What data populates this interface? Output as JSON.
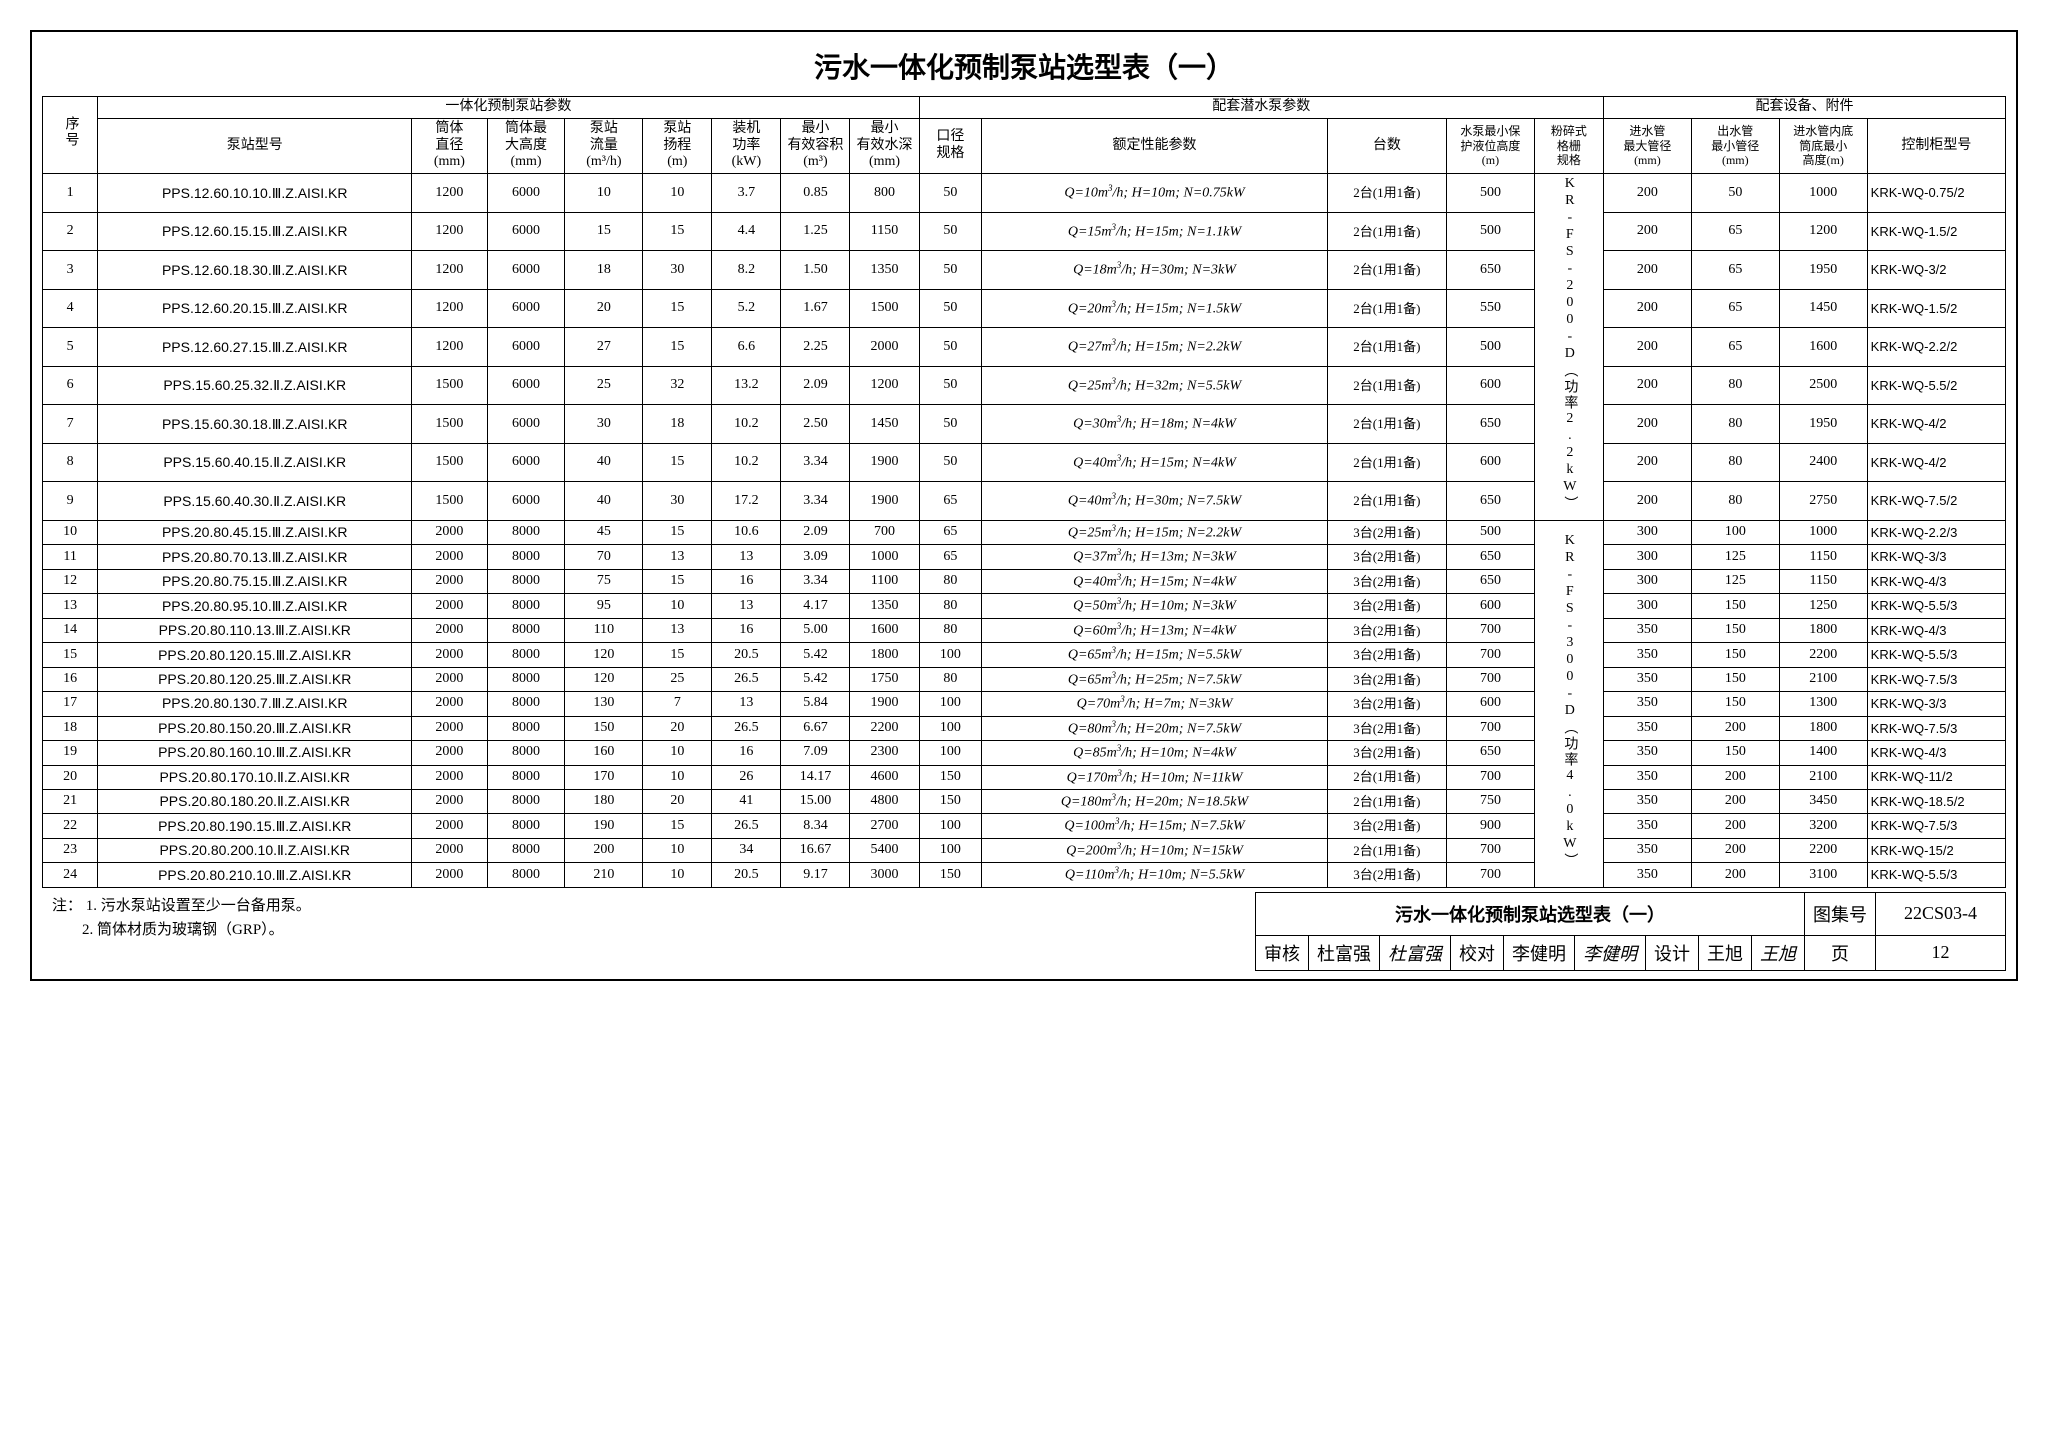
{
  "title": "污水一体化预制泵站选型表（一）",
  "header_group1": "一体化预制泵站参数",
  "header_group2": "配套潜水泵参数",
  "header_group3": "配套设备、附件",
  "col_seq": "序号",
  "col_model": "泵站型号",
  "col_diam": "筒体直径(mm)",
  "col_maxh": "筒体最大高度(mm)",
  "col_flow": "泵站流量(m³/h)",
  "col_head": "泵站扬程(m)",
  "col_power": "装机功率(kW)",
  "col_vol": "最小有效容积(m³)",
  "col_minpump": "最小有效水深(mm)",
  "col_caliber": "口径规格",
  "col_rated": "额定性能参数",
  "col_count": "台数",
  "col_level": "水泵最小保护液位高度(m)",
  "col_grid": "粉碎式格栅规格",
  "col_inlet": "进水管最大管径(mm)",
  "col_outlet": "出水管最小管径(mm)",
  "col_botmin": "进水管内底筒底最小高度(m)",
  "col_cabinet": "控制柜型号",
  "grid_spec_1": "KR-FS-200-D（功率2.2kW）",
  "grid_spec_2": "KR-FS-300-D（功率4.0kW）",
  "rows": [
    {
      "n": 1,
      "model": "PPS.12.60.10.10.Ⅲ.Z.AISI.KR",
      "d": 1200,
      "mh": 6000,
      "fl": 10,
      "hd": 10,
      "pw": "3.7",
      "vol": "0.85",
      "mp": 800,
      "cal": 50,
      "rated": "Q=10m³/h; H=10m; N=0.75kW",
      "cnt": "2台(1用1备)",
      "lv": 500,
      "in": 200,
      "out": 50,
      "bot": 1000,
      "cab": "KRK-WQ-0.75/2"
    },
    {
      "n": 2,
      "model": "PPS.12.60.15.15.Ⅲ.Z.AISI.KR",
      "d": 1200,
      "mh": 6000,
      "fl": 15,
      "hd": 15,
      "pw": "4.4",
      "vol": "1.25",
      "mp": 1150,
      "cal": 50,
      "rated": "Q=15m³/h; H=15m; N=1.1kW",
      "cnt": "2台(1用1备)",
      "lv": 500,
      "in": 200,
      "out": 65,
      "bot": 1200,
      "cab": "KRK-WQ-1.5/2"
    },
    {
      "n": 3,
      "model": "PPS.12.60.18.30.Ⅲ.Z.AISI.KR",
      "d": 1200,
      "mh": 6000,
      "fl": 18,
      "hd": 30,
      "pw": "8.2",
      "vol": "1.50",
      "mp": 1350,
      "cal": 50,
      "rated": "Q=18m³/h; H=30m; N=3kW",
      "cnt": "2台(1用1备)",
      "lv": 650,
      "in": 200,
      "out": 65,
      "bot": 1950,
      "cab": "KRK-WQ-3/2"
    },
    {
      "n": 4,
      "model": "PPS.12.60.20.15.Ⅲ.Z.AISI.KR",
      "d": 1200,
      "mh": 6000,
      "fl": 20,
      "hd": 15,
      "pw": "5.2",
      "vol": "1.67",
      "mp": 1500,
      "cal": 50,
      "rated": "Q=20m³/h; H=15m; N=1.5kW",
      "cnt": "2台(1用1备)",
      "lv": 550,
      "in": 200,
      "out": 65,
      "bot": 1450,
      "cab": "KRK-WQ-1.5/2"
    },
    {
      "n": 5,
      "model": "PPS.12.60.27.15.Ⅲ.Z.AISI.KR",
      "d": 1200,
      "mh": 6000,
      "fl": 27,
      "hd": 15,
      "pw": "6.6",
      "vol": "2.25",
      "mp": 2000,
      "cal": 50,
      "rated": "Q=27m³/h; H=15m; N=2.2kW",
      "cnt": "2台(1用1备)",
      "lv": 500,
      "in": 200,
      "out": 65,
      "bot": 1600,
      "cab": "KRK-WQ-2.2/2"
    },
    {
      "n": 6,
      "model": "PPS.15.60.25.32.Ⅱ.Z.AISI.KR",
      "d": 1500,
      "mh": 6000,
      "fl": 25,
      "hd": 32,
      "pw": "13.2",
      "vol": "2.09",
      "mp": 1200,
      "cal": 50,
      "rated": "Q=25m³/h; H=32m; N=5.5kW",
      "cnt": "2台(1用1备)",
      "lv": 600,
      "in": 200,
      "out": 80,
      "bot": 2500,
      "cab": "KRK-WQ-5.5/2"
    },
    {
      "n": 7,
      "model": "PPS.15.60.30.18.Ⅲ.Z.AISI.KR",
      "d": 1500,
      "mh": 6000,
      "fl": 30,
      "hd": 18,
      "pw": "10.2",
      "vol": "2.50",
      "mp": 1450,
      "cal": 50,
      "rated": "Q=30m³/h; H=18m; N=4kW",
      "cnt": "2台(1用1备)",
      "lv": 650,
      "in": 200,
      "out": 80,
      "bot": 1950,
      "cab": "KRK-WQ-4/2"
    },
    {
      "n": 8,
      "model": "PPS.15.60.40.15.Ⅱ.Z.AISI.KR",
      "d": 1500,
      "mh": 6000,
      "fl": 40,
      "hd": 15,
      "pw": "10.2",
      "vol": "3.34",
      "mp": 1900,
      "cal": 50,
      "rated": "Q=40m³/h; H=15m; N=4kW",
      "cnt": "2台(1用1备)",
      "lv": 600,
      "in": 200,
      "out": 80,
      "bot": 2400,
      "cab": "KRK-WQ-4/2"
    },
    {
      "n": 9,
      "model": "PPS.15.60.40.30.Ⅱ.Z.AISI.KR",
      "d": 1500,
      "mh": 6000,
      "fl": 40,
      "hd": 30,
      "pw": "17.2",
      "vol": "3.34",
      "mp": 1900,
      "cal": 65,
      "rated": "Q=40m³/h; H=30m; N=7.5kW",
      "cnt": "2台(1用1备)",
      "lv": 650,
      "in": 200,
      "out": 80,
      "bot": 2750,
      "cab": "KRK-WQ-7.5/2"
    },
    {
      "n": 10,
      "model": "PPS.20.80.45.15.Ⅲ.Z.AISI.KR",
      "d": 2000,
      "mh": 8000,
      "fl": 45,
      "hd": 15,
      "pw": "10.6",
      "vol": "2.09",
      "mp": 700,
      "cal": 65,
      "rated": "Q=25m³/h; H=15m; N=2.2kW",
      "cnt": "3台(2用1备)",
      "lv": 500,
      "in": 300,
      "out": 100,
      "bot": 1000,
      "cab": "KRK-WQ-2.2/3"
    },
    {
      "n": 11,
      "model": "PPS.20.80.70.13.Ⅲ.Z.AISI.KR",
      "d": 2000,
      "mh": 8000,
      "fl": 70,
      "hd": 13,
      "pw": "13",
      "vol": "3.09",
      "mp": 1000,
      "cal": 65,
      "rated": "Q=37m³/h; H=13m; N=3kW",
      "cnt": "3台(2用1备)",
      "lv": 650,
      "in": 300,
      "out": 125,
      "bot": 1150,
      "cab": "KRK-WQ-3/3"
    },
    {
      "n": 12,
      "model": "PPS.20.80.75.15.Ⅲ.Z.AISI.KR",
      "d": 2000,
      "mh": 8000,
      "fl": 75,
      "hd": 15,
      "pw": "16",
      "vol": "3.34",
      "mp": 1100,
      "cal": 80,
      "rated": "Q=40m³/h; H=15m; N=4kW",
      "cnt": "3台(2用1备)",
      "lv": 650,
      "in": 300,
      "out": 125,
      "bot": 1150,
      "cab": "KRK-WQ-4/3"
    },
    {
      "n": 13,
      "model": "PPS.20.80.95.10.Ⅲ.Z.AISI.KR",
      "d": 2000,
      "mh": 8000,
      "fl": 95,
      "hd": 10,
      "pw": "13",
      "vol": "4.17",
      "mp": 1350,
      "cal": 80,
      "rated": "Q=50m³/h; H=10m; N=3kW",
      "cnt": "3台(2用1备)",
      "lv": 600,
      "in": 300,
      "out": 150,
      "bot": 1250,
      "cab": "KRK-WQ-5.5/3"
    },
    {
      "n": 14,
      "model": "PPS.20.80.110.13.Ⅲ.Z.AISI.KR",
      "d": 2000,
      "mh": 8000,
      "fl": 110,
      "hd": 13,
      "pw": "16",
      "vol": "5.00",
      "mp": 1600,
      "cal": 80,
      "rated": "Q=60m³/h; H=13m; N=4kW",
      "cnt": "3台(2用1备)",
      "lv": 700,
      "in": 350,
      "out": 150,
      "bot": 1800,
      "cab": "KRK-WQ-4/3"
    },
    {
      "n": 15,
      "model": "PPS.20.80.120.15.Ⅲ.Z.AISI.KR",
      "d": 2000,
      "mh": 8000,
      "fl": 120,
      "hd": 15,
      "pw": "20.5",
      "vol": "5.42",
      "mp": 1800,
      "cal": 100,
      "rated": "Q=65m³/h; H=15m; N=5.5kW",
      "cnt": "3台(2用1备)",
      "lv": 700,
      "in": 350,
      "out": 150,
      "bot": 2200,
      "cab": "KRK-WQ-5.5/3"
    },
    {
      "n": 16,
      "model": "PPS.20.80.120.25.Ⅲ.Z.AISI.KR",
      "d": 2000,
      "mh": 8000,
      "fl": 120,
      "hd": 25,
      "pw": "26.5",
      "vol": "5.42",
      "mp": 1750,
      "cal": 80,
      "rated": "Q=65m³/h; H=25m; N=7.5kW",
      "cnt": "3台(2用1备)",
      "lv": 700,
      "in": 350,
      "out": 150,
      "bot": 2100,
      "cab": "KRK-WQ-7.5/3"
    },
    {
      "n": 17,
      "model": "PPS.20.80.130.7.Ⅲ.Z.AISI.KR",
      "d": 2000,
      "mh": 8000,
      "fl": 130,
      "hd": 7,
      "pw": "13",
      "vol": "5.84",
      "mp": 1900,
      "cal": 100,
      "rated": "Q=70m³/h; H=7m; N=3kW",
      "cnt": "3台(2用1备)",
      "lv": 600,
      "in": 350,
      "out": 150,
      "bot": 1300,
      "cab": "KRK-WQ-3/3"
    },
    {
      "n": 18,
      "model": "PPS.20.80.150.20.Ⅲ.Z.AISI.KR",
      "d": 2000,
      "mh": 8000,
      "fl": 150,
      "hd": 20,
      "pw": "26.5",
      "vol": "6.67",
      "mp": 2200,
      "cal": 100,
      "rated": "Q=80m³/h; H=20m; N=7.5kW",
      "cnt": "3台(2用1备)",
      "lv": 700,
      "in": 350,
      "out": 200,
      "bot": 1800,
      "cab": "KRK-WQ-7.5/3"
    },
    {
      "n": 19,
      "model": "PPS.20.80.160.10.Ⅲ.Z.AISI.KR",
      "d": 2000,
      "mh": 8000,
      "fl": 160,
      "hd": 10,
      "pw": "16",
      "vol": "7.09",
      "mp": 2300,
      "cal": 100,
      "rated": "Q=85m³/h; H=10m; N=4kW",
      "cnt": "3台(2用1备)",
      "lv": 650,
      "in": 350,
      "out": 150,
      "bot": 1400,
      "cab": "KRK-WQ-4/3"
    },
    {
      "n": 20,
      "model": "PPS.20.80.170.10.Ⅱ.Z.AISI.KR",
      "d": 2000,
      "mh": 8000,
      "fl": 170,
      "hd": 10,
      "pw": "26",
      "vol": "14.17",
      "mp": 4600,
      "cal": 150,
      "rated": "Q=170m³/h; H=10m; N=11kW",
      "cnt": "2台(1用1备)",
      "lv": 700,
      "in": 350,
      "out": 200,
      "bot": 2100,
      "cab": "KRK-WQ-11/2"
    },
    {
      "n": 21,
      "model": "PPS.20.80.180.20.Ⅱ.Z.AISI.KR",
      "d": 2000,
      "mh": 8000,
      "fl": 180,
      "hd": 20,
      "pw": "41",
      "vol": "15.00",
      "mp": 4800,
      "cal": 150,
      "rated": "Q=180m³/h; H=20m; N=18.5kW",
      "cnt": "2台(1用1备)",
      "lv": 750,
      "in": 350,
      "out": 200,
      "bot": 3450,
      "cab": "KRK-WQ-18.5/2"
    },
    {
      "n": 22,
      "model": "PPS.20.80.190.15.Ⅲ.Z.AISI.KR",
      "d": 2000,
      "mh": 8000,
      "fl": 190,
      "hd": 15,
      "pw": "26.5",
      "vol": "8.34",
      "mp": 2700,
      "cal": 100,
      "rated": "Q=100m³/h; H=15m; N=7.5kW",
      "cnt": "3台(2用1备)",
      "lv": 900,
      "in": 350,
      "out": 200,
      "bot": 3200,
      "cab": "KRK-WQ-7.5/3"
    },
    {
      "n": 23,
      "model": "PPS.20.80.200.10.Ⅱ.Z.AISI.KR",
      "d": 2000,
      "mh": 8000,
      "fl": 200,
      "hd": 10,
      "pw": "34",
      "vol": "16.67",
      "mp": 5400,
      "cal": 100,
      "rated": "Q=200m³/h; H=10m; N=15kW",
      "cnt": "2台(1用1备)",
      "lv": 700,
      "in": 350,
      "out": 200,
      "bot": 2200,
      "cab": "KRK-WQ-15/2"
    },
    {
      "n": 24,
      "model": "PPS.20.80.210.10.Ⅲ.Z.AISI.KR",
      "d": 2000,
      "mh": 8000,
      "fl": 210,
      "hd": 10,
      "pw": "20.5",
      "vol": "9.17",
      "mp": 3000,
      "cal": 150,
      "rated": "Q=110m³/h; H=10m; N=5.5kW",
      "cnt": "3台(2用1备)",
      "lv": 700,
      "in": 350,
      "out": 200,
      "bot": 3100,
      "cab": "KRK-WQ-5.5/3"
    }
  ],
  "notes_label": "注：",
  "note1": "1. 污水泵站设置至少一台备用泵。",
  "note2": "2. 筒体材质为玻璃钢（GRP）。",
  "footer_title": "污水一体化预制泵站选型表（一）",
  "drawing_set_label": "图集号",
  "drawing_set": "22CS03-4",
  "review_label": "审核",
  "review_name": "杜富强",
  "review_sig": "杜富强",
  "check_label": "校对",
  "check_name": "李健明",
  "check_sig": "李健明",
  "design_label": "设计",
  "design_name": "王旭",
  "design_sig": "王旭",
  "page_label": "页",
  "page_num": "12"
}
